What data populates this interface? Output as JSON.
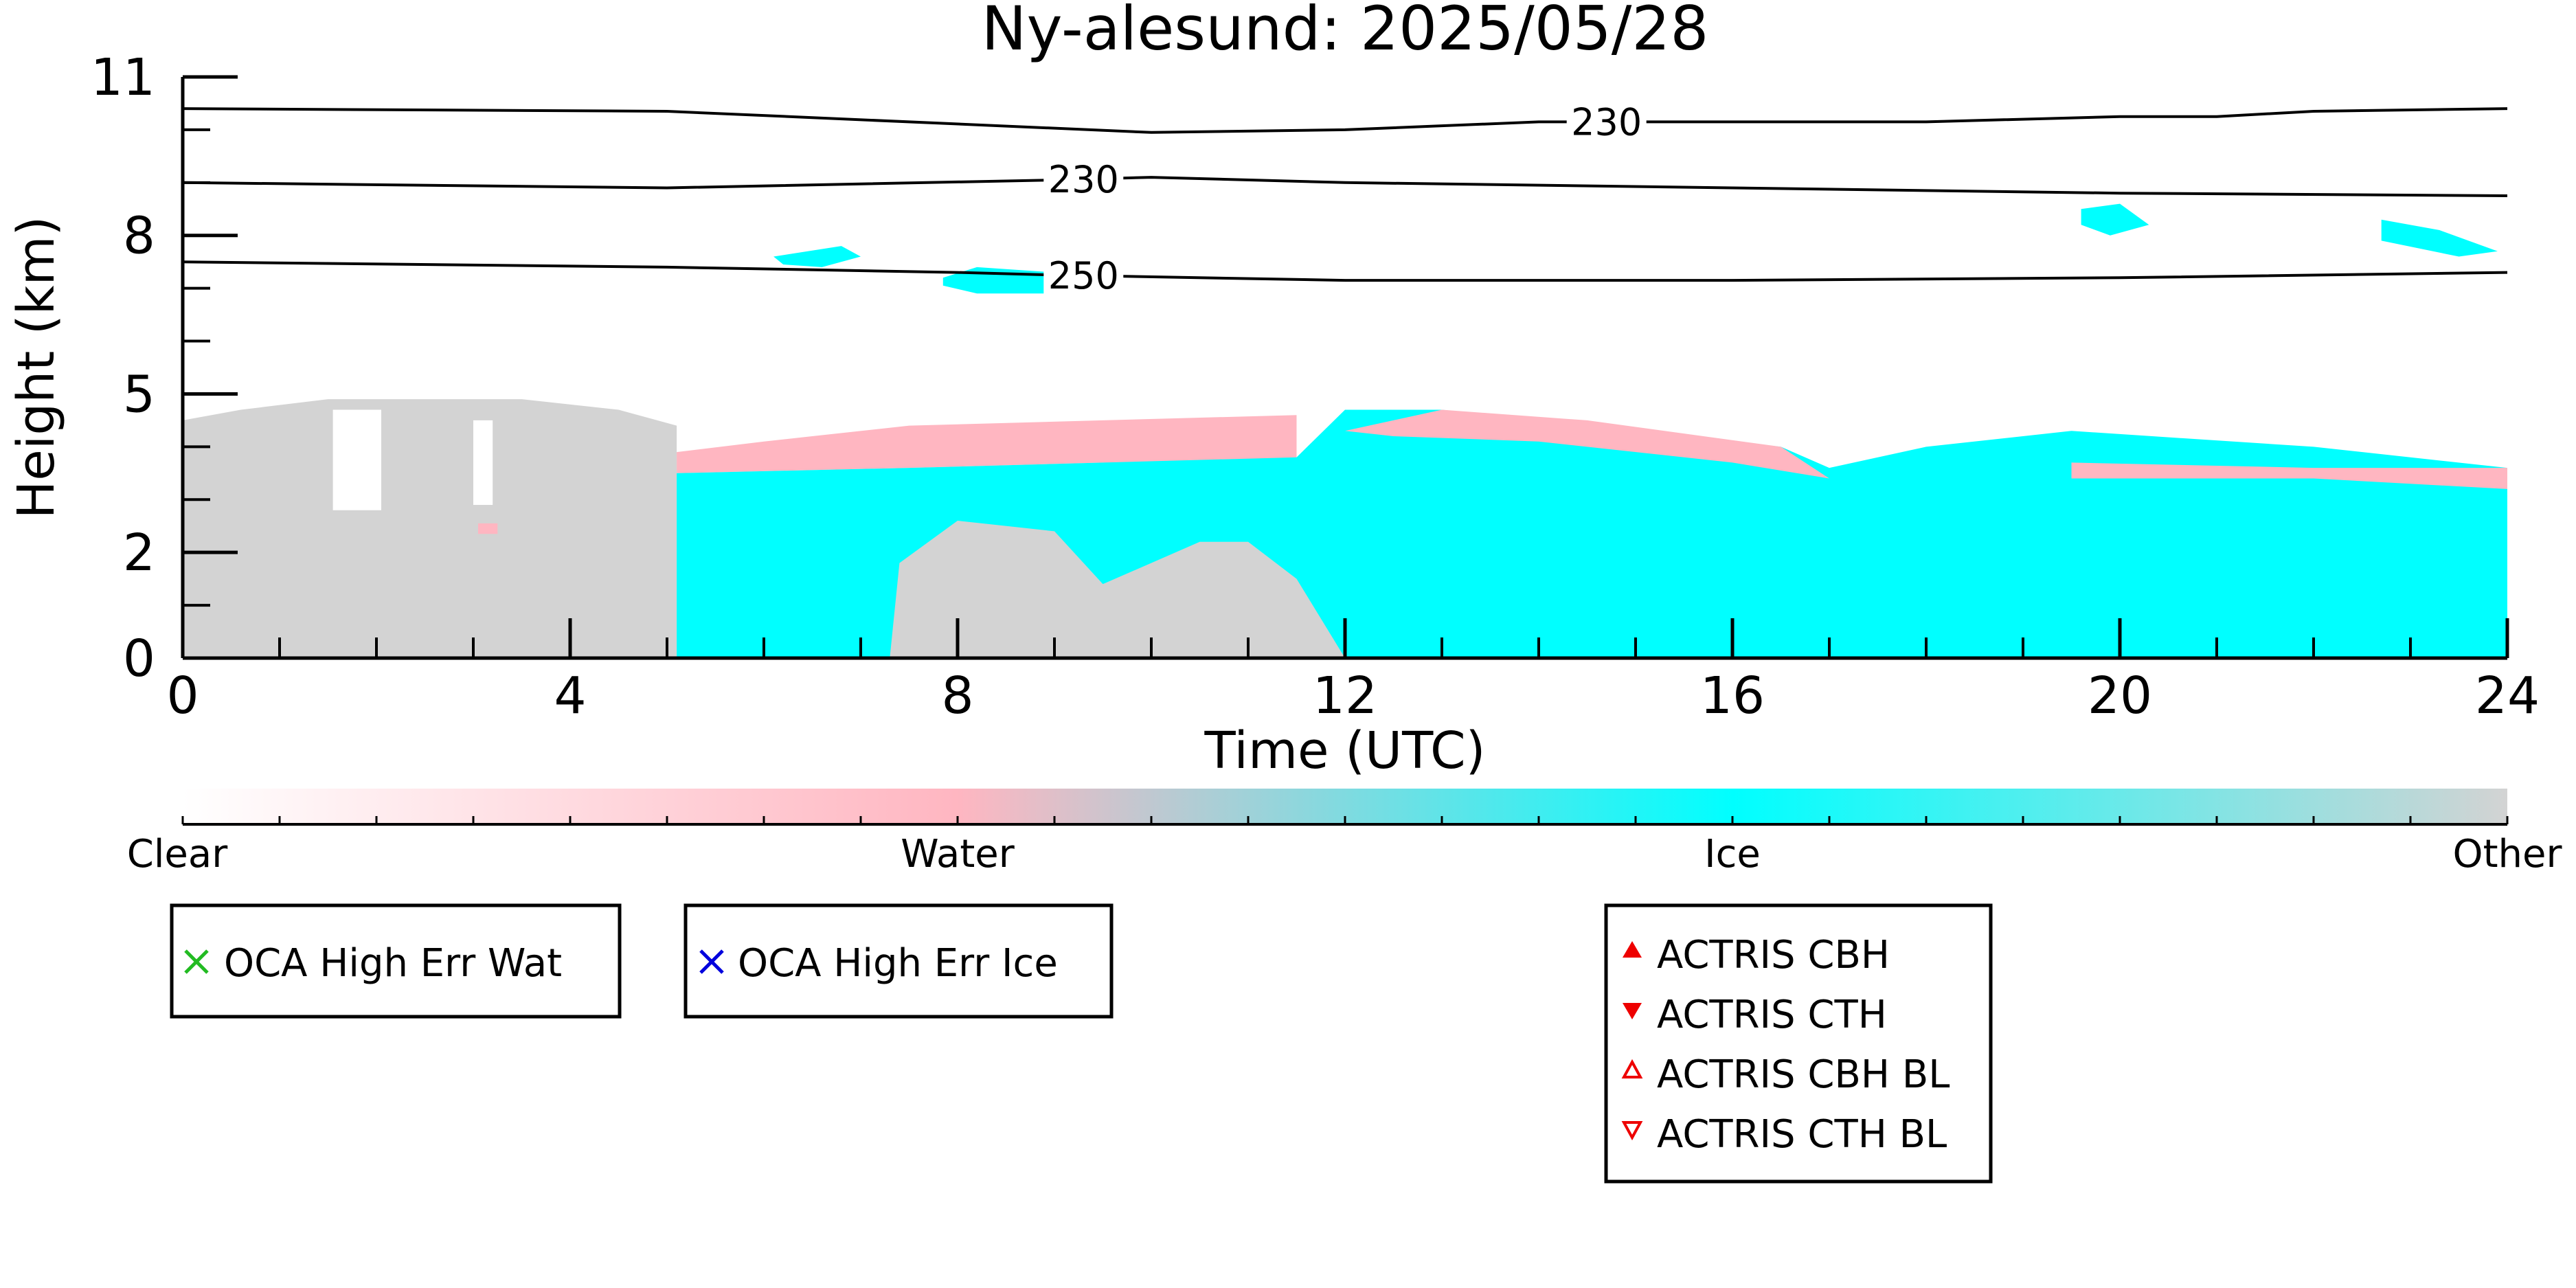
{
  "chart_data": {
    "type": "heatmap",
    "title": "Ny-alesund: 2025/05/28",
    "xlabel": "Time (UTC)",
    "ylabel": "Height (km)",
    "xlim": [
      0,
      24
    ],
    "ylim": [
      0,
      11
    ],
    "x_ticks": [
      0,
      4,
      8,
      12,
      16,
      20,
      24
    ],
    "y_ticks": [
      0,
      2,
      5,
      8,
      11
    ],
    "classes": [
      {
        "name": "Clear",
        "color": "#ffffff"
      },
      {
        "name": "Water",
        "color": "#ffb6c1"
      },
      {
        "name": "Ice",
        "color": "#00ffff"
      },
      {
        "name": "Other",
        "color": "#d3d3d3"
      }
    ],
    "regions": [
      {
        "class": "Other",
        "polygon": [
          [
            0,
            0
          ],
          [
            0,
            4.5
          ],
          [
            0.6,
            4.7
          ],
          [
            1.5,
            4.9
          ],
          [
            2.5,
            4.9
          ],
          [
            3.5,
            4.9
          ],
          [
            4.5,
            4.7
          ],
          [
            5.1,
            4.4
          ],
          [
            5.1,
            0
          ]
        ]
      },
      {
        "class": "Clear",
        "polygon": [
          [
            1.55,
            2.8
          ],
          [
            1.55,
            4.7
          ],
          [
            2.05,
            4.7
          ],
          [
            2.05,
            2.8
          ]
        ]
      },
      {
        "class": "Clear",
        "polygon": [
          [
            3.0,
            2.9
          ],
          [
            3.0,
            4.5
          ],
          [
            3.2,
            4.5
          ],
          [
            3.2,
            2.9
          ]
        ]
      },
      {
        "class": "Water",
        "polygon": [
          [
            5.1,
            3.9
          ],
          [
            6.0,
            4.1
          ],
          [
            7.5,
            4.4
          ],
          [
            9.5,
            4.5
          ],
          [
            11.5,
            4.6
          ],
          [
            11.5,
            3.6
          ],
          [
            9.5,
            3.7
          ],
          [
            7.5,
            3.6
          ],
          [
            5.1,
            3.5
          ]
        ]
      },
      {
        "class": "Ice",
        "polygon": [
          [
            5.1,
            0
          ],
          [
            5.1,
            3.5
          ],
          [
            7.5,
            3.6
          ],
          [
            9.5,
            3.7
          ],
          [
            11.5,
            3.8
          ],
          [
            12.0,
            4.7
          ],
          [
            13.0,
            4.7
          ],
          [
            15.0,
            4.3
          ],
          [
            16.5,
            4.0
          ],
          [
            17.0,
            3.6
          ],
          [
            18.0,
            4.0
          ],
          [
            19.5,
            4.3
          ],
          [
            22.0,
            4.0
          ],
          [
            24.0,
            3.6
          ],
          [
            24,
            0
          ]
        ]
      },
      {
        "class": "Other",
        "polygon": [
          [
            7.3,
            0
          ],
          [
            7.4,
            1.8
          ],
          [
            8.0,
            2.6
          ],
          [
            9.0,
            2.4
          ],
          [
            9.5,
            1.4
          ],
          [
            10.5,
            2.2
          ],
          [
            11.0,
            2.2
          ],
          [
            11.5,
            1.5
          ],
          [
            12.0,
            0
          ]
        ]
      },
      {
        "class": "Water",
        "polygon": [
          [
            12.0,
            4.3
          ],
          [
            13.0,
            4.7
          ],
          [
            14.5,
            4.5
          ],
          [
            16.5,
            4.0
          ],
          [
            17.0,
            3.4
          ],
          [
            16.0,
            3.7
          ],
          [
            14.0,
            4.1
          ],
          [
            12.5,
            4.2
          ]
        ]
      },
      {
        "class": "Water",
        "polygon": [
          [
            19.5,
            3.7
          ],
          [
            22.0,
            3.6
          ],
          [
            24.0,
            3.6
          ],
          [
            24.0,
            3.2
          ],
          [
            22.0,
            3.4
          ],
          [
            19.5,
            3.4
          ]
        ]
      },
      {
        "class": "Water",
        "polygon": [
          [
            3.05,
            2.35
          ],
          [
            3.25,
            2.35
          ],
          [
            3.25,
            2.55
          ],
          [
            3.05,
            2.55
          ]
        ]
      },
      {
        "class": "Ice",
        "polygon": [
          [
            6.1,
            7.6
          ],
          [
            6.8,
            7.8
          ],
          [
            7.0,
            7.6
          ],
          [
            6.6,
            7.4
          ],
          [
            6.2,
            7.45
          ]
        ]
      },
      {
        "class": "Ice",
        "polygon": [
          [
            7.85,
            7.2
          ],
          [
            8.2,
            7.4
          ],
          [
            9.0,
            7.3
          ],
          [
            9.0,
            6.9
          ],
          [
            8.2,
            6.9
          ],
          [
            7.85,
            7.05
          ]
        ]
      },
      {
        "class": "Ice",
        "polygon": [
          [
            19.6,
            8.5
          ],
          [
            20.0,
            8.6
          ],
          [
            20.3,
            8.2
          ],
          [
            19.9,
            8.0
          ],
          [
            19.6,
            8.2
          ]
        ]
      },
      {
        "class": "Ice",
        "polygon": [
          [
            22.7,
            8.3
          ],
          [
            23.3,
            8.1
          ],
          [
            23.9,
            7.7
          ],
          [
            23.5,
            7.6
          ],
          [
            22.7,
            7.9
          ]
        ]
      }
    ],
    "contours": [
      {
        "label": "230",
        "label_x": 14.7,
        "points": [
          [
            0,
            10.4
          ],
          [
            5,
            10.35
          ],
          [
            10,
            9.95
          ],
          [
            12,
            10.0
          ],
          [
            14,
            10.15
          ],
          [
            16,
            10.15
          ],
          [
            18,
            10.15
          ],
          [
            20,
            10.25
          ],
          [
            21,
            10.25
          ],
          [
            22,
            10.35
          ],
          [
            24,
            10.4
          ]
        ]
      },
      {
        "label": "230",
        "label_x": 9.3,
        "points": [
          [
            0,
            9.0
          ],
          [
            5,
            8.9
          ],
          [
            9,
            9.05
          ],
          [
            10,
            9.1
          ],
          [
            12,
            9.0
          ],
          [
            16,
            8.9
          ],
          [
            20,
            8.8
          ],
          [
            24,
            8.75
          ]
        ]
      },
      {
        "label": "250",
        "label_x": 9.3,
        "points": [
          [
            0,
            7.5
          ],
          [
            5,
            7.4
          ],
          [
            8,
            7.3
          ],
          [
            9,
            7.25
          ],
          [
            12,
            7.15
          ],
          [
            16,
            7.15
          ],
          [
            20,
            7.2
          ],
          [
            24,
            7.3
          ]
        ]
      }
    ],
    "colorbar_labels": [
      "Clear",
      "Water",
      "Ice",
      "Other"
    ],
    "legend_boxes": [
      {
        "entries": [
          {
            "label": "OCA High Err Wat",
            "marker": "x",
            "color": "#22bb22"
          }
        ]
      },
      {
        "entries": [
          {
            "label": "OCA High Err Ice",
            "marker": "x",
            "color": "#0000dd"
          }
        ]
      },
      {
        "entries": [
          {
            "label": "ACTRIS CBH",
            "marker": "triangle-up",
            "color": "#ee0000"
          },
          {
            "label": "ACTRIS CTH",
            "marker": "triangle-down",
            "color": "#ee0000"
          },
          {
            "label": "ACTRIS CBH BL",
            "marker": "triangle-up-open",
            "color": "#ee0000"
          },
          {
            "label": "ACTRIS CTH BL",
            "marker": "triangle-down-open",
            "color": "#ee0000"
          }
        ]
      }
    ]
  }
}
